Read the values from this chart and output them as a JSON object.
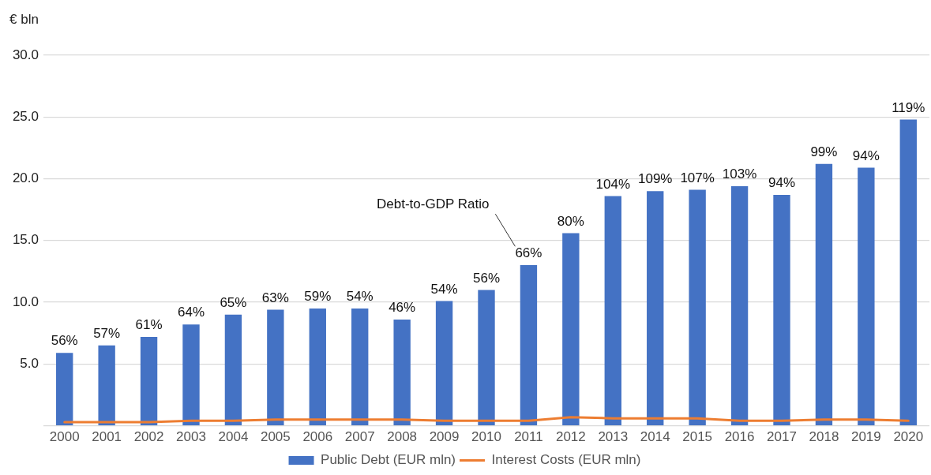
{
  "chart_data": {
    "type": "bar",
    "ylabel": "€ bln",
    "categories": [
      "2000",
      "2001",
      "2002",
      "2003",
      "2004",
      "2005",
      "2006",
      "2007",
      "2008",
      "2009",
      "2010",
      "2011",
      "2012",
      "2013",
      "2014",
      "2015",
      "2016",
      "2017",
      "2018",
      "2019",
      "2020"
    ],
    "series": [
      {
        "name": "Public Debt (EUR mln)",
        "color": "#4472c4",
        "values": [
          5.9,
          6.5,
          7.2,
          8.2,
          9.0,
          9.4,
          9.5,
          9.5,
          8.6,
          10.1,
          11.0,
          13.0,
          15.6,
          18.6,
          19.0,
          19.1,
          19.4,
          18.7,
          21.2,
          20.9,
          24.8
        ]
      },
      {
        "name": "Interest Costs (EUR mln)",
        "type": "line",
        "color": "#ed7d31",
        "values": [
          0.3,
          0.3,
          0.3,
          0.4,
          0.4,
          0.5,
          0.5,
          0.5,
          0.5,
          0.4,
          0.4,
          0.4,
          0.7,
          0.6,
          0.6,
          0.6,
          0.4,
          0.4,
          0.5,
          0.5,
          0.4
        ]
      }
    ],
    "ylim": [
      0,
      30
    ],
    "yticks": [
      {
        "value": 0,
        "label": null
      },
      {
        "value": 5,
        "label": "5.0"
      },
      {
        "value": 10,
        "label": "10.0"
      },
      {
        "value": 15,
        "label": "15.0"
      },
      {
        "value": 20,
        "label": "20.0"
      },
      {
        "value": 25,
        "label": "25.0"
      },
      {
        "value": 30,
        "label": "30.0"
      }
    ],
    "grid": "y",
    "legend": "bottom",
    "annotations": [
      {
        "text": "56%",
        "x": "2000",
        "y": 5.9
      },
      {
        "text": "57%",
        "x": "2001",
        "y": 6.5
      },
      {
        "text": "61%",
        "x": "2002",
        "y": 7.2
      },
      {
        "text": "64%",
        "x": "2003",
        "y": 8.2
      },
      {
        "text": "65%",
        "x": "2004",
        "y": 9.0
      },
      {
        "text": "63%",
        "x": "2005",
        "y": 9.4
      },
      {
        "text": "59%",
        "x": "2006",
        "y": 9.5
      },
      {
        "text": "54%",
        "x": "2007",
        "y": 9.5
      },
      {
        "text": "46%",
        "x": "2008",
        "y": 8.6
      },
      {
        "text": "54%",
        "x": "2009",
        "y": 10.1
      },
      {
        "text": "56%",
        "x": "2010",
        "y": 11.0
      },
      {
        "text": "66%",
        "x": "2011",
        "y": 13.0
      },
      {
        "text": "80%",
        "x": "2012",
        "y": 15.6
      },
      {
        "text": "104%",
        "x": "2013",
        "y": 18.6
      },
      {
        "text": "109%",
        "x": "2014",
        "y": 19.0
      },
      {
        "text": "107%",
        "x": "2015",
        "y": 19.1
      },
      {
        "text": "103%",
        "x": "2016",
        "y": 19.4
      },
      {
        "text": "94%",
        "x": "2017",
        "y": 18.7
      },
      {
        "text": "99%",
        "x": "2018",
        "y": 21.2
      },
      {
        "text": "94%",
        "x": "2019",
        "y": 20.9
      },
      {
        "text": "119%",
        "x": "2020",
        "y": 24.8
      },
      "Debt-to-GDP Ratio"
    ]
  }
}
